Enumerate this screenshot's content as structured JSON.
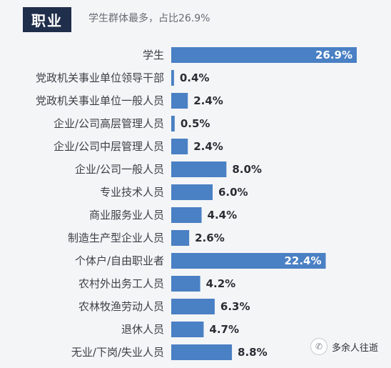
{
  "header": {
    "title": "职业",
    "subtitle": "学生群体最多，占比26.9%"
  },
  "watermark": {
    "icon": "wechat-icon",
    "text": "多余人往逝"
  },
  "colors": {
    "bar": "#4a80c4",
    "badge": "#1f2e4a"
  },
  "chart_data": {
    "type": "bar",
    "orientation": "horizontal",
    "categories": [
      "学生",
      "党政机关事业单位领导干部",
      "党政机关事业单位一般人员",
      "企业/公司高层管理人员",
      "企业/公司中层管理人员",
      "企业/公司一般人员",
      "专业技术人员",
      "商业服务业人员",
      "制造生产型企业人员",
      "个体户/自由职业者",
      "农村外出务工人员",
      "农林牧渔劳动人员",
      "退休人员",
      "无业/下岗/失业人员"
    ],
    "values": [
      26.9,
      0.4,
      2.4,
      0.5,
      2.4,
      8.0,
      6.0,
      4.4,
      2.6,
      22.4,
      4.2,
      6.3,
      4.7,
      8.8
    ],
    "labels": [
      "26.9%",
      "0.4%",
      "2.4%",
      "0.5%",
      "2.4%",
      "8.0%",
      "6.0%",
      "4.4%",
      "2.6%",
      "22.4%",
      "4.2%",
      "6.3%",
      "4.7%",
      "8.8%"
    ],
    "xlim": [
      0,
      26.9
    ],
    "grid": false
  }
}
